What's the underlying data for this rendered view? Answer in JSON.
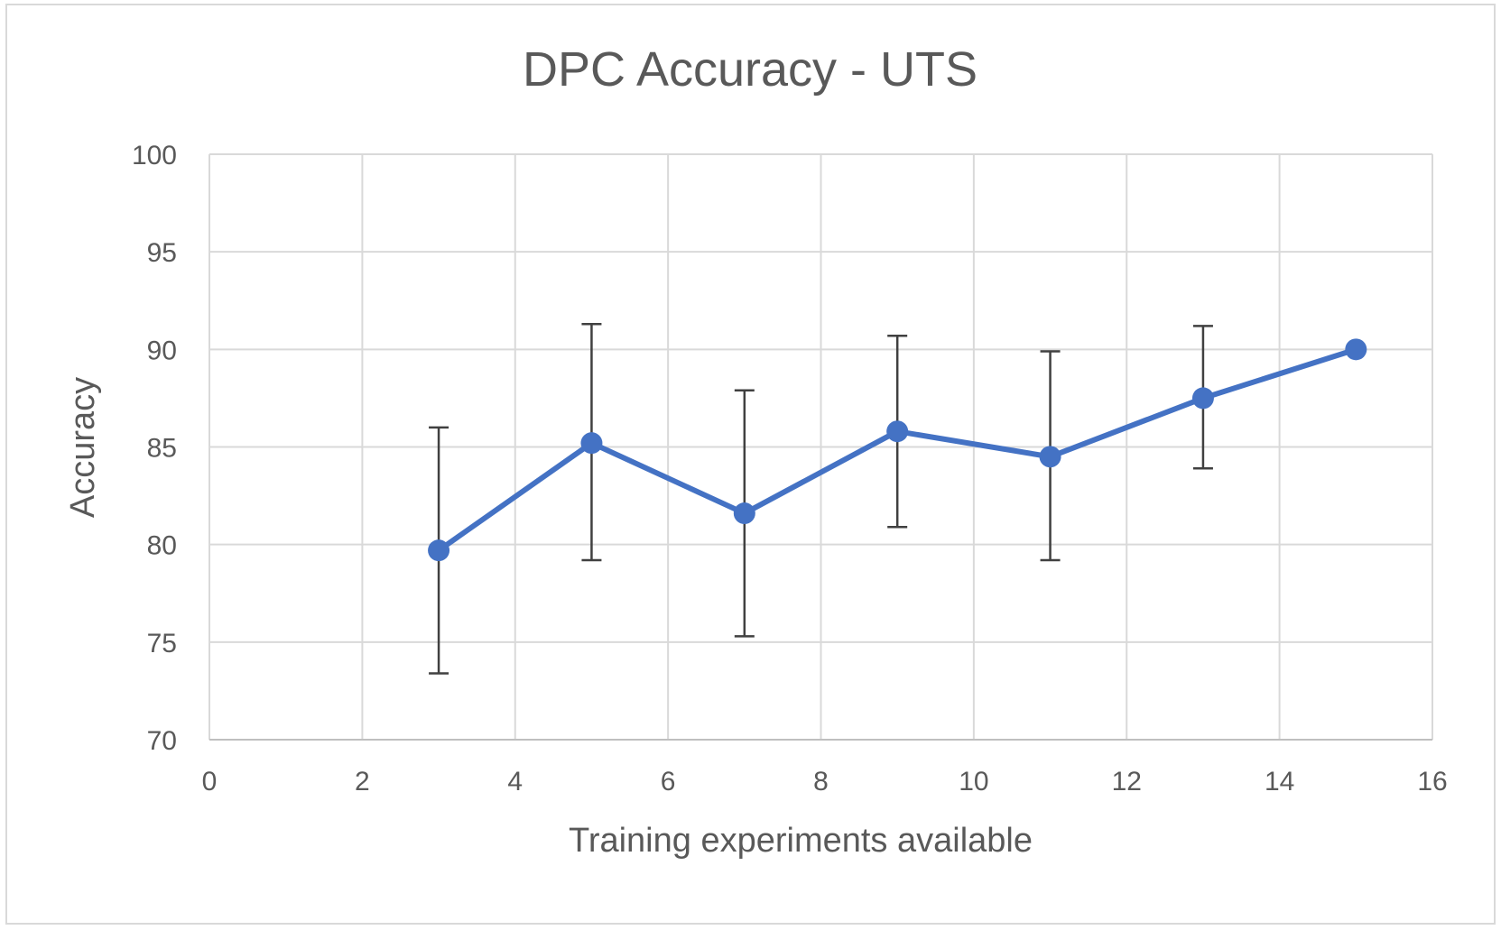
{
  "chart_data": {
    "type": "scatter",
    "title": "DPC Accuracy - UTS",
    "xlabel": "Training experiments available",
    "ylabel": "Accuracy",
    "xlim": [
      0,
      16
    ],
    "ylim": [
      70,
      100
    ],
    "x_ticks": [
      "0",
      "2",
      "4",
      "6",
      "8",
      "10",
      "12",
      "14",
      "16"
    ],
    "y_ticks": [
      "70",
      "75",
      "80",
      "85",
      "90",
      "95",
      "100"
    ],
    "grid": true,
    "legend": "none",
    "series": [
      {
        "color": "#4472c4",
        "points": [
          {
            "x": 3,
            "y": 79.7,
            "err_low": 73.4,
            "err_high": 86.0
          },
          {
            "x": 5,
            "y": 85.2,
            "err_low": 79.2,
            "err_high": 91.3
          },
          {
            "x": 7,
            "y": 81.6,
            "err_low": 75.3,
            "err_high": 87.9
          },
          {
            "x": 9,
            "y": 85.8,
            "err_low": 80.9,
            "err_high": 90.7
          },
          {
            "x": 11,
            "y": 84.5,
            "err_low": 79.2,
            "err_high": 89.9
          },
          {
            "x": 13,
            "y": 87.5,
            "err_low": 83.9,
            "err_high": 91.2
          },
          {
            "x": 15,
            "y": 90.0
          }
        ]
      }
    ]
  }
}
